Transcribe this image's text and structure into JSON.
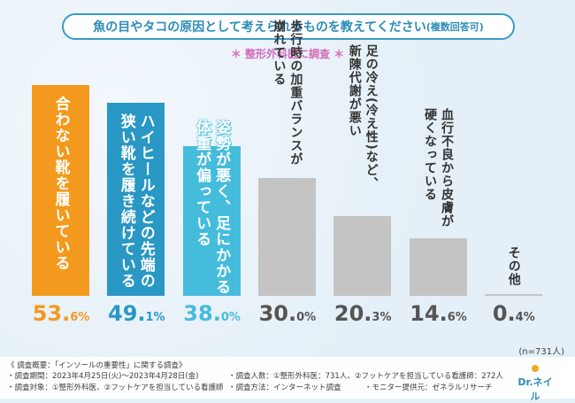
{
  "header": {
    "title": "魚の目やタコの原因として考えられるものを教えてください",
    "title_suffix": "(複数回答可)",
    "subtitle": "＊ 整形外科医に調査 ＊"
  },
  "chart_data": {
    "type": "bar",
    "title": "魚の目やタコの原因として考えられるものを教えてください(複数回答可)",
    "categories": [
      [
        "合わない靴を履いている"
      ],
      [
        "ハイヒールなどの先端の",
        "狭い靴を履き続けている"
      ],
      [
        "姿勢が悪く、足にかかる",
        "体重が偏っている"
      ],
      [
        "歩行時の加重バランスが",
        "崩れている"
      ],
      [
        "足の冷え(冷え性)など、",
        "新陳代謝が悪い"
      ],
      [
        "血行不良から皮膚が",
        "硬くなっている"
      ],
      [
        "その他"
      ]
    ],
    "values": [
      53.6,
      49.1,
      38.0,
      30.0,
      20.3,
      14.6,
      0.4
    ],
    "value_labels": [
      [
        "53.",
        "6%"
      ],
      [
        "49.",
        "1%"
      ],
      [
        "38.",
        "0%"
      ],
      [
        "30.",
        "0%"
      ],
      [
        "20.",
        "3%"
      ],
      [
        "14.",
        "6%"
      ],
      [
        "0.",
        "4%"
      ]
    ],
    "colors": [
      "#f39a1e",
      "#2a98c4",
      "#46bcdc",
      "#c4c4c4",
      "#c4c4c4",
      "#c4c4c4",
      "#c4c4c4"
    ],
    "label_colors": [
      "#f39a1e",
      "#2a98c4",
      "#46bcdc",
      "#555555",
      "#555555",
      "#555555",
      "#555555"
    ],
    "ylim": [
      0,
      60
    ],
    "xlabel": "",
    "ylabel": "",
    "grid": false
  },
  "note": "(n=731人)",
  "footer": {
    "summary": "《 調査概要：「インソールの重要性」に関する調査》",
    "period": "・調査期間：2023年4月25日(火)～2023年4月28日(金)",
    "target": "・調査対象：①整形外科医、②フットケアを担当している看護師",
    "count": "・調査人数：①整形外科医：731人、②フットケアを担当している看護師：272人",
    "method": "・調査方法：インターネット調査",
    "monitor": "・モニター提供元：ゼネラルリサーチ"
  },
  "logo": "Dr.ネイル"
}
